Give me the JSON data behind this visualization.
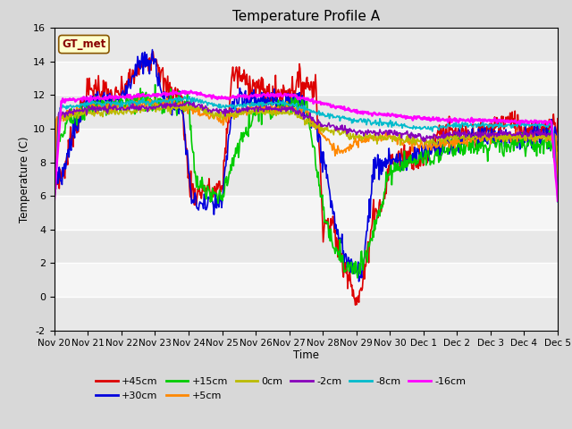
{
  "title": "Temperature Profile A",
  "xlabel": "Time",
  "ylabel": "Temperature (C)",
  "annotation_text": "GT_met",
  "ylim": [
    -2,
    16
  ],
  "xtick_labels": [
    "Nov 20",
    "Nov 21",
    "Nov 22",
    "Nov 23",
    "Nov 24",
    "Nov 25",
    "Nov 26",
    "Nov 27",
    "Nov 28",
    "Nov 29",
    "Nov 30",
    "Dec 1",
    "Dec 2",
    "Dec 3",
    "Dec 4",
    "Dec 5"
  ],
  "series_labels": [
    "+45cm",
    "+30cm",
    "+15cm",
    "+5cm",
    "0cm",
    "-2cm",
    "-8cm",
    "-16cm"
  ],
  "series_colors": [
    "#dd0000",
    "#0000dd",
    "#00cc00",
    "#ff8800",
    "#bbbb00",
    "#8800bb",
    "#00bbcc",
    "#ff00ff"
  ],
  "series_linewidths": [
    1.2,
    1.2,
    1.2,
    1.2,
    1.2,
    1.2,
    1.2,
    1.8
  ],
  "bg_color": "#d8d8d8",
  "plot_bg_color": "#ffffff",
  "title_fontsize": 11,
  "legend_fontsize": 8,
  "grid_color": "#d0d0d0",
  "n_points": 720
}
